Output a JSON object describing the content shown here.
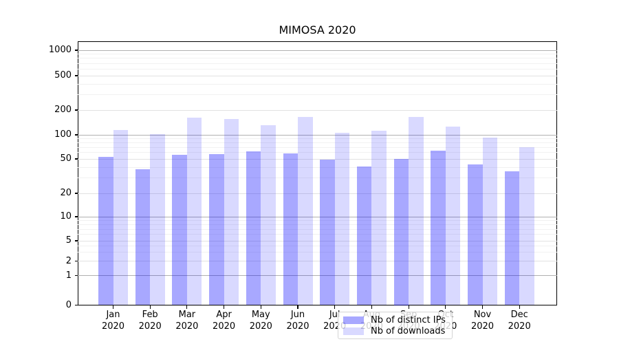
{
  "title": "MIMOSA 2020",
  "chart_data": {
    "type": "bar",
    "title": "MIMOSA 2020",
    "categories": [
      "Jan",
      "Feb",
      "Mar",
      "Apr",
      "May",
      "Jun",
      "Jul",
      "Aug",
      "Sep",
      "Oct",
      "Nov",
      "Dec"
    ],
    "year_label": "2020",
    "series": [
      {
        "name": "Nb of distinct IPs",
        "color": "rgba(0,0,255,0.34)",
        "values": [
          53,
          38,
          56,
          57,
          62,
          59,
          49,
          41,
          50,
          63,
          43,
          36
        ]
      },
      {
        "name": "Nb of downloads",
        "color": "rgba(0,0,255,0.15)",
        "values": [
          115,
          102,
          162,
          157,
          131,
          165,
          105,
          112,
          164,
          126,
          92,
          70
        ]
      }
    ],
    "y_scale": "symlog",
    "y_ticks": [
      0,
      1,
      2,
      5,
      10,
      20,
      50,
      100,
      200,
      500,
      1000
    ],
    "y_tick_labels": [
      "0",
      "1",
      "2",
      "5",
      "10",
      "20",
      "50",
      "100",
      "200",
      "500",
      "1000"
    ],
    "ylim": [
      0,
      1500
    ],
    "grid": true,
    "legend_position": "lower center"
  }
}
